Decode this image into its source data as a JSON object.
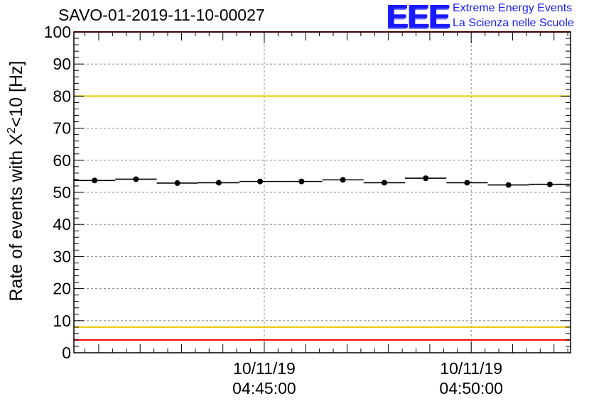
{
  "chart_data": {
    "type": "scatter",
    "title": "SAVO-01-2019-11-10-00027",
    "ylabel_base": "Rate of events with X",
    "ylabel_sup": "2",
    "ylabel_rest": "<10 [Hz]",
    "ylim": [
      0,
      100
    ],
    "yticks": [
      0,
      10,
      20,
      30,
      40,
      50,
      60,
      70,
      80,
      90,
      100
    ],
    "xlim": [
      "04:40:24",
      "04:52:24"
    ],
    "xtick_labels": [
      {
        "date": "10/11/19",
        "time": "04:45:00"
      },
      {
        "date": "10/11/19",
        "time": "04:50:00"
      }
    ],
    "grid": true,
    "reference_lines": [
      {
        "y": 80,
        "color": "#e6c800"
      },
      {
        "y": 8,
        "color": "#e6c800"
      },
      {
        "y": 4,
        "color": "#ff0000"
      },
      {
        "y": 100,
        "color": "#ff0000"
      }
    ],
    "series": [
      {
        "color": "#000000",
        "points": [
          {
            "t": "04:40:54",
            "y": 53.7
          },
          {
            "t": "04:41:54",
            "y": 54.1
          },
          {
            "t": "04:42:54",
            "y": 52.9
          },
          {
            "t": "04:43:54",
            "y": 53.0
          },
          {
            "t": "04:44:54",
            "y": 53.4
          },
          {
            "t": "04:45:54",
            "y": 53.4
          },
          {
            "t": "04:46:54",
            "y": 53.9
          },
          {
            "t": "04:47:54",
            "y": 53.0
          },
          {
            "t": "04:48:54",
            "y": 54.4
          },
          {
            "t": "04:49:54",
            "y": 53.0
          },
          {
            "t": "04:50:54",
            "y": 52.3
          },
          {
            "t": "04:51:54",
            "y": 52.5
          }
        ]
      }
    ]
  },
  "logo": {
    "text": "EEE",
    "line1": "Extreme Energy Events",
    "line2": "La Scienza nelle Scuole"
  }
}
